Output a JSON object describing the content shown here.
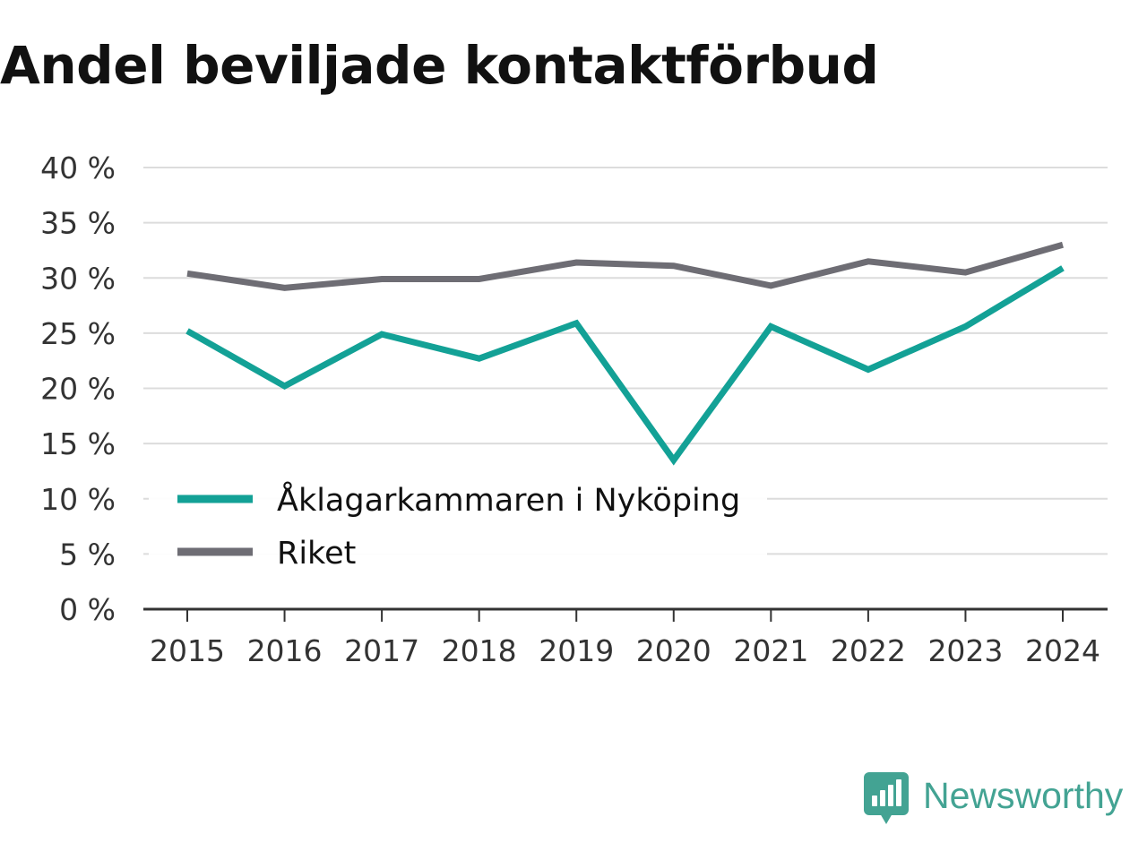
{
  "chart_data": {
    "type": "line",
    "title": "Andel beviljade kontaktförbud",
    "x": [
      "2015",
      "2016",
      "2017",
      "2018",
      "2019",
      "2020",
      "2021",
      "2022",
      "2023",
      "2024"
    ],
    "series": [
      {
        "name": "Åklagarkammaren i Nyköping",
        "color": "#13a196",
        "values": [
          25.2,
          20.2,
          24.9,
          22.7,
          25.9,
          13.5,
          25.6,
          21.7,
          25.6,
          30.9
        ]
      },
      {
        "name": "Riket",
        "color": "#6e6d74",
        "values": [
          30.4,
          29.1,
          29.9,
          29.9,
          31.4,
          31.1,
          29.3,
          31.5,
          30.5,
          33.0
        ]
      }
    ],
    "yticks": [
      "0 %",
      "5 %",
      "10 %",
      "15 %",
      "20 %",
      "25 %",
      "30 %",
      "35 %",
      "40 %"
    ],
    "ylim": [
      0,
      40
    ],
    "grid": true,
    "legend_position": "bottom-left"
  },
  "brand": {
    "name": "Newsworthy",
    "icon": "newsworthy-logo-icon",
    "color": "#43a393"
  }
}
